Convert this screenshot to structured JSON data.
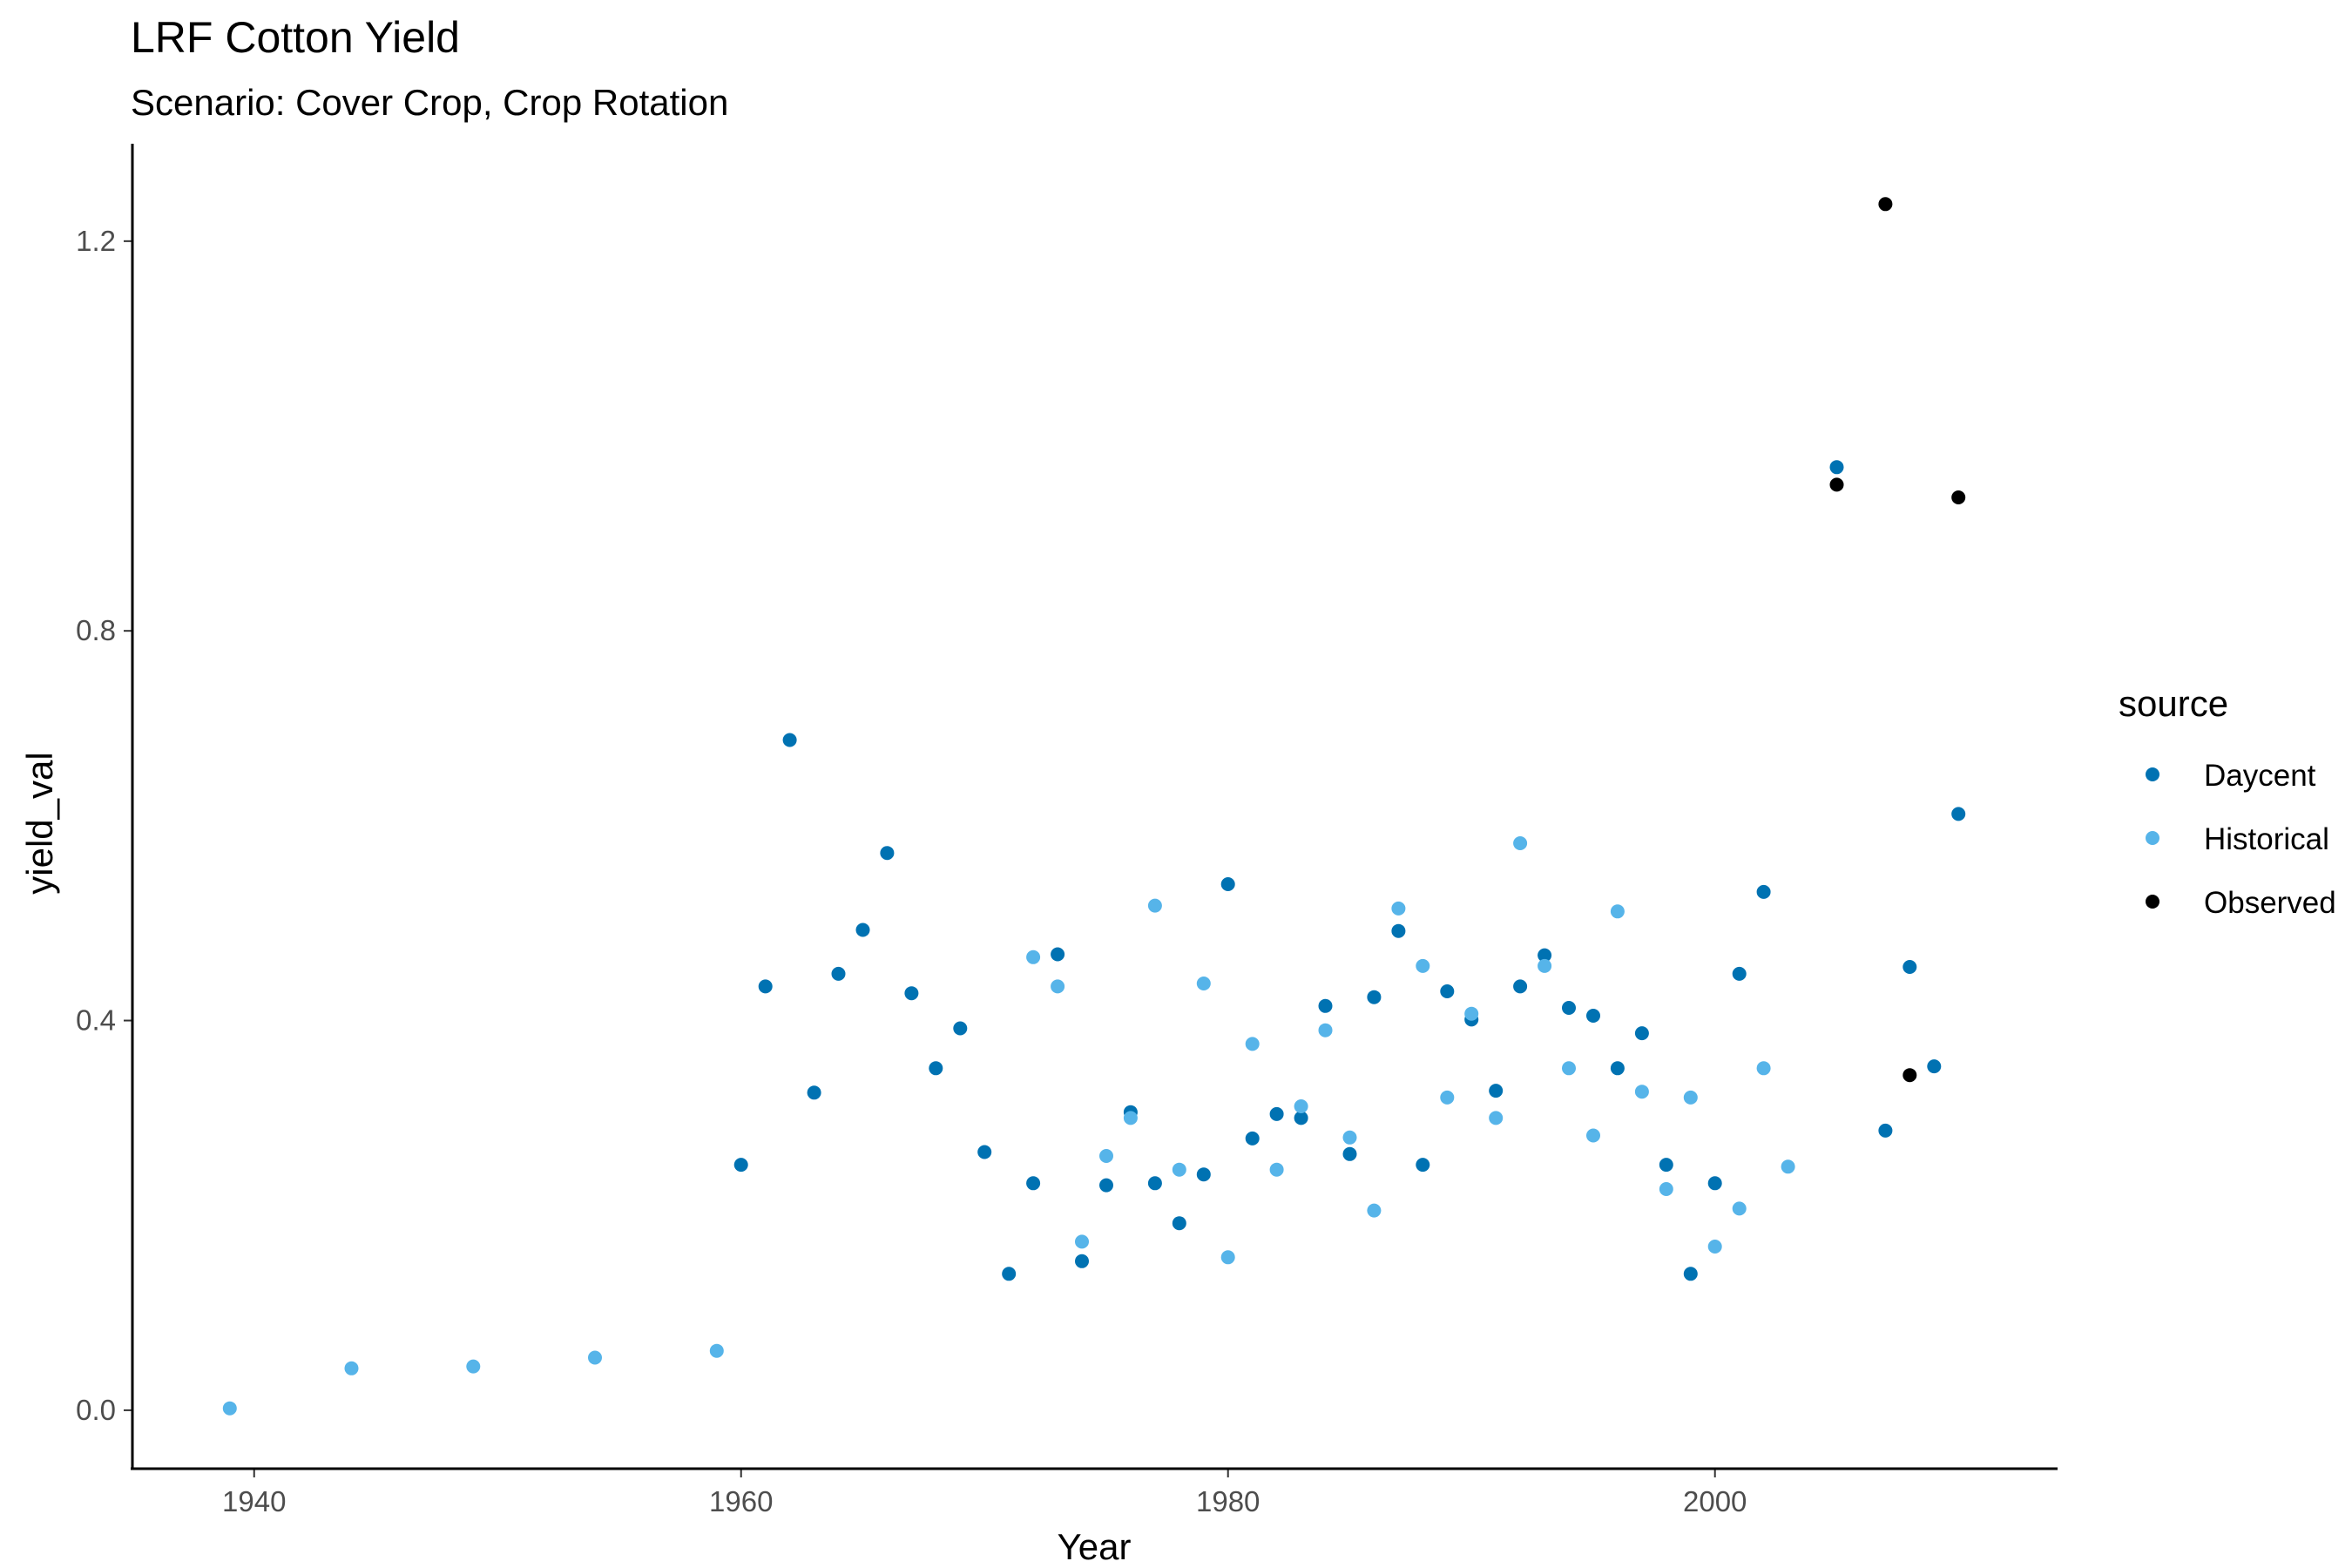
{
  "chart_data": {
    "type": "scatter",
    "title": "LRF Cotton Yield",
    "subtitle": "Scenario: Cover Crop, Crop Rotation",
    "xlabel": "Year",
    "ylabel": "yield_val",
    "xlim": [
      1935,
      2014
    ],
    "ylim": [
      -0.06,
      1.3
    ],
    "x_ticks": [
      1940,
      1960,
      1980,
      2000
    ],
    "y_ticks": [
      0.0,
      0.4,
      0.8,
      1.2
    ],
    "x_tick_labels": [
      "1940",
      "1960",
      "1980",
      "2000"
    ],
    "y_tick_labels": [
      "0.0",
      "0.4",
      "0.8",
      "1.2"
    ],
    "grid": false,
    "legend": {
      "title": "source",
      "position": "right"
    },
    "series": [
      {
        "name": "Daycent",
        "color": "#0072B2",
        "points": [
          [
            1960,
            0.252
          ],
          [
            1961,
            0.435
          ],
          [
            1962,
            0.688
          ],
          [
            1963,
            0.326
          ],
          [
            1964,
            0.448
          ],
          [
            1965,
            0.493
          ],
          [
            1966,
            0.572
          ],
          [
            1967,
            0.428
          ],
          [
            1968,
            0.351
          ],
          [
            1969,
            0.392
          ],
          [
            1970,
            0.265
          ],
          [
            1971,
            0.14
          ],
          [
            1972,
            0.233
          ],
          [
            1973,
            0.468
          ],
          [
            1974,
            0.153
          ],
          [
            1975,
            0.231
          ],
          [
            1976,
            0.306
          ],
          [
            1977,
            0.233
          ],
          [
            1978,
            0.192
          ],
          [
            1979,
            0.242
          ],
          [
            1980,
            0.54
          ],
          [
            1981,
            0.279
          ],
          [
            1982,
            0.304
          ],
          [
            1983,
            0.3
          ],
          [
            1984,
            0.415
          ],
          [
            1985,
            0.263
          ],
          [
            1986,
            0.424
          ],
          [
            1987,
            0.492
          ],
          [
            1988,
            0.252
          ],
          [
            1989,
            0.43
          ],
          [
            1990,
            0.401
          ],
          [
            1991,
            0.328
          ],
          [
            1992,
            0.435
          ],
          [
            1993,
            0.467
          ],
          [
            1994,
            0.413
          ],
          [
            1995,
            0.405
          ],
          [
            1996,
            0.351
          ],
          [
            1997,
            0.387
          ],
          [
            1998,
            0.252
          ],
          [
            1999,
            0.14
          ],
          [
            2000,
            0.233
          ],
          [
            2001,
            0.448
          ],
          [
            2002,
            0.532
          ],
          [
            2005,
            0.968
          ],
          [
            2007,
            0.287
          ],
          [
            2008,
            0.455
          ],
          [
            2009,
            0.353
          ],
          [
            2010,
            0.612
          ]
        ]
      },
      {
        "name": "Historical",
        "color": "#56B4E9",
        "points": [
          [
            1939,
            0.002
          ],
          [
            1944,
            0.043
          ],
          [
            1949,
            0.045
          ],
          [
            1954,
            0.054
          ],
          [
            1959,
            0.061
          ],
          [
            1972,
            0.465
          ],
          [
            1973,
            0.435
          ],
          [
            1974,
            0.173
          ],
          [
            1975,
            0.261
          ],
          [
            1976,
            0.3
          ],
          [
            1977,
            0.518
          ],
          [
            1978,
            0.247
          ],
          [
            1979,
            0.438
          ],
          [
            1980,
            0.157
          ],
          [
            1981,
            0.376
          ],
          [
            1982,
            0.247
          ],
          [
            1983,
            0.312
          ],
          [
            1984,
            0.39
          ],
          [
            1985,
            0.28
          ],
          [
            1986,
            0.205
          ],
          [
            1987,
            0.515
          ],
          [
            1988,
            0.456
          ],
          [
            1989,
            0.321
          ],
          [
            1990,
            0.407
          ],
          [
            1991,
            0.3
          ],
          [
            1992,
            0.582
          ],
          [
            1993,
            0.456
          ],
          [
            1994,
            0.351
          ],
          [
            1995,
            0.282
          ],
          [
            1996,
            0.512
          ],
          [
            1997,
            0.327
          ],
          [
            1998,
            0.227
          ],
          [
            1999,
            0.321
          ],
          [
            2000,
            0.168
          ],
          [
            2001,
            0.207
          ],
          [
            2002,
            0.351
          ],
          [
            2003,
            0.25
          ]
        ]
      },
      {
        "name": "Observed",
        "color": "#000000",
        "points": [
          [
            2005,
            0.95
          ],
          [
            2007,
            1.238
          ],
          [
            2008,
            0.344
          ],
          [
            2010,
            0.937
          ]
        ]
      }
    ]
  }
}
